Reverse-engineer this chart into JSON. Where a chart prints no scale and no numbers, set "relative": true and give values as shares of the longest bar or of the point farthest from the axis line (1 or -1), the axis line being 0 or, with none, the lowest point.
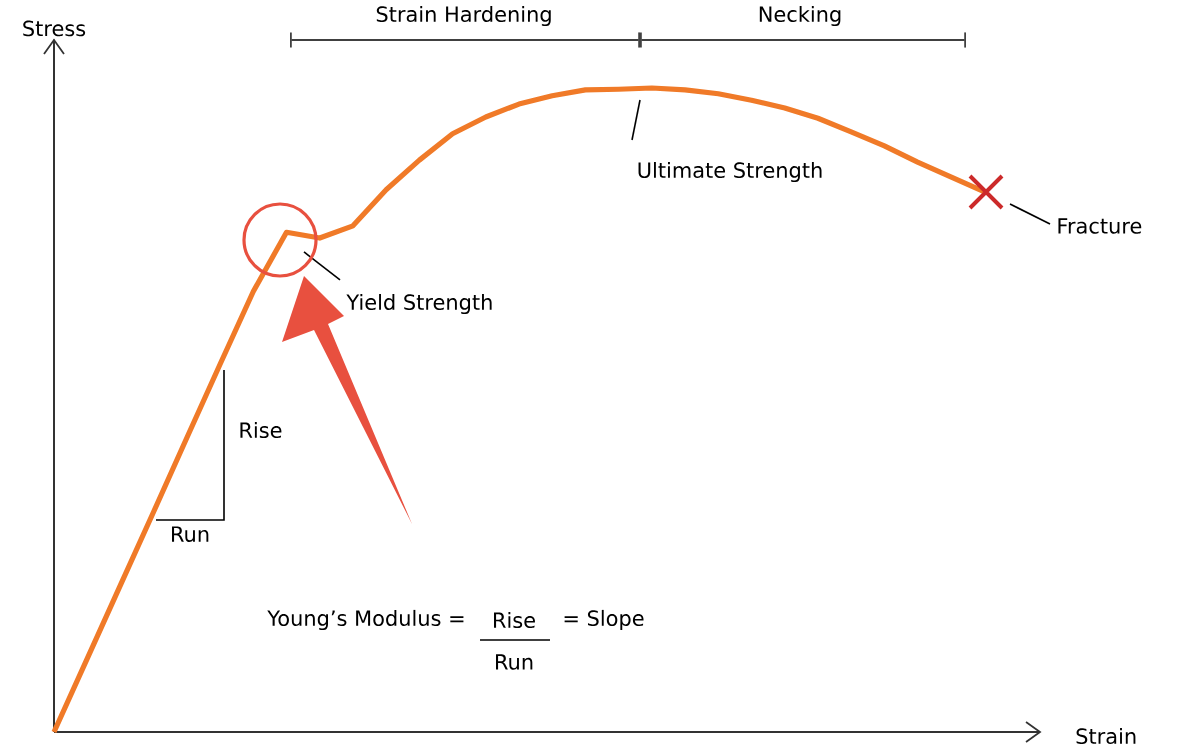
{
  "chart_data": {
    "type": "line",
    "relative": true,
    "xlabel": "Strain",
    "ylabel": "Stress",
    "categories": [
      null,
      null,
      null,
      null,
      null,
      null,
      null,
      null,
      null,
      null,
      null,
      null,
      null,
      null,
      null,
      null,
      null,
      null,
      null,
      null,
      null,
      null,
      null,
      null,
      null,
      null,
      null,
      null,
      null
    ],
    "series": [
      {
        "color": "#f07a28",
        "values": [
          0,
          0.114,
          0.228,
          0.342,
          0.457,
          0.571,
          0.684,
          0.776,
          0.767,
          0.786,
          0.842,
          0.888,
          0.929,
          0.955,
          0.975,
          0.988,
          0.997,
          0.998,
          1,
          0.997,
          0.991,
          0.981,
          0.969,
          0.953,
          0.932,
          0.91,
          0.885,
          0.862,
          0.839
        ]
      }
    ],
    "annotations": [
      "Strain Hardening",
      "Necking",
      "Yield Strength",
      "Ultimate Strength",
      "Fracture",
      "Rise",
      "Run",
      "Young’s Modulus =",
      "Rise",
      "Run",
      "= Slope"
    ]
  }
}
